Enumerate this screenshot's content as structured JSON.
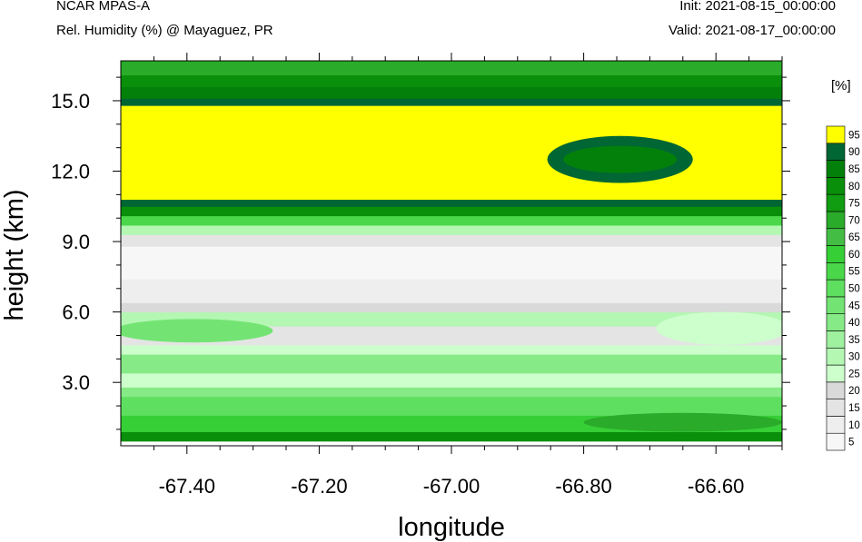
{
  "header": {
    "model": "NCAR MPAS-A",
    "field": "Rel. Humidity (%) @ Mayaguez, PR",
    "init": "Init: 2021-08-15_00:00:00",
    "valid": "Valid: 2021-08-17_00:00:00"
  },
  "colorbar": {
    "unit": "[%]",
    "levels": [
      "5",
      "10",
      "15",
      "20",
      "25",
      "30",
      "35",
      "40",
      "45",
      "50",
      "55",
      "60",
      "65",
      "70",
      "75",
      "80",
      "85",
      "90",
      "95"
    ],
    "colors": [
      "#f7f7f7",
      "#eeeeee",
      "#e4e4e4",
      "#d9d9d9",
      "#ccffcc",
      "#b3f7b3",
      "#9ff09f",
      "#86ea86",
      "#73e473",
      "#5fdf5f",
      "#4ad84a",
      "#36cf36",
      "#44bd44",
      "#2aab2a",
      "#119d11",
      "#0a8f0a",
      "#03800a",
      "#006633",
      "#ffff00"
    ],
    "color_under": "#ffffff"
  },
  "chart_data": {
    "type": "heatmap",
    "xlabel": "longitude",
    "ylabel": "height (km)",
    "xlim": [
      -67.5,
      -66.5
    ],
    "ylim": [
      0.3,
      16.7
    ],
    "x_ticks": [
      "-67.40",
      "-67.20",
      "-67.00",
      "-66.80",
      "-66.60"
    ],
    "x_tick_values": [
      -67.4,
      -67.2,
      -67.0,
      -66.8,
      -66.6
    ],
    "y_ticks": [
      "3.0",
      "6.0",
      "9.0",
      "12.0",
      "15.0"
    ],
    "y_tick_values": [
      3.0,
      6.0,
      9.0,
      12.0,
      15.0
    ],
    "layers": [
      {
        "z0": 0.3,
        "z1": 0.5,
        "rh": 0
      },
      {
        "z0": 0.5,
        "z1": 0.9,
        "rh": 80
      },
      {
        "z0": 0.9,
        "z1": 1.6,
        "rh": 60
      },
      {
        "z0": 1.6,
        "z1": 2.4,
        "rh": 50
      },
      {
        "z0": 2.4,
        "z1": 2.8,
        "rh": 40
      },
      {
        "z0": 2.8,
        "z1": 3.4,
        "rh": 25
      },
      {
        "z0": 3.4,
        "z1": 4.2,
        "rh": 40
      },
      {
        "z0": 4.2,
        "z1": 4.6,
        "rh": 25
      },
      {
        "z0": 4.6,
        "z1": 5.4,
        "rh": 15
      },
      {
        "z0": 5.4,
        "z1": 6.0,
        "rh": 30
      },
      {
        "z0": 6.0,
        "z1": 6.4,
        "rh": 20
      },
      {
        "z0": 6.4,
        "z1": 7.4,
        "rh": 10
      },
      {
        "z0": 7.4,
        "z1": 8.8,
        "rh": 5
      },
      {
        "z0": 8.8,
        "z1": 9.3,
        "rh": 15
      },
      {
        "z0": 9.3,
        "z1": 9.7,
        "rh": 30
      },
      {
        "z0": 9.7,
        "z1": 10.1,
        "rh": 55
      },
      {
        "z0": 10.1,
        "z1": 10.5,
        "rh": 80
      },
      {
        "z0": 10.5,
        "z1": 10.8,
        "rh": 90
      },
      {
        "z0": 10.8,
        "z1": 14.8,
        "rh": 95
      },
      {
        "z0": 14.8,
        "z1": 15.1,
        "rh": 90
      },
      {
        "z0": 15.1,
        "z1": 15.6,
        "rh": 85
      },
      {
        "z0": 15.6,
        "z1": 16.1,
        "rh": 80
      },
      {
        "z0": 16.1,
        "z1": 16.7,
        "rh": 70
      }
    ],
    "features": [
      {
        "type": "ring",
        "x": -66.745,
        "y": 12.5,
        "rx": 0.11,
        "ry": 1.0,
        "rh": 90,
        "inner_rh": 85
      },
      {
        "type": "patch",
        "x": -67.39,
        "y": 5.2,
        "rx": 0.12,
        "ry": 0.5,
        "rh": 45
      },
      {
        "type": "patch",
        "x": -66.59,
        "y": 5.3,
        "rx": 0.1,
        "ry": 0.7,
        "rh": 25
      },
      {
        "type": "patch",
        "x": -66.65,
        "y": 1.3,
        "rx": 0.15,
        "ry": 0.4,
        "rh": 70
      }
    ]
  }
}
